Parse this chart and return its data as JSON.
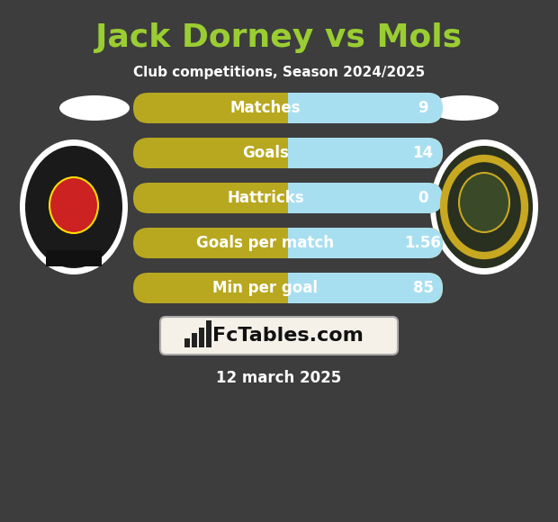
{
  "title": "Jack Dorney vs Mols",
  "subtitle": "Club competitions, Season 2024/2025",
  "date_text": "12 march 2025",
  "background_color": "#3d3d3d",
  "title_color": "#9acd32",
  "subtitle_color": "#ffffff",
  "date_color": "#ffffff",
  "stats": [
    {
      "label": "Matches",
      "value": "9"
    },
    {
      "label": "Goals",
      "value": "14"
    },
    {
      "label": "Hattricks",
      "value": "0"
    },
    {
      "label": "Goals per match",
      "value": "1.56"
    },
    {
      "label": "Min per goal",
      "value": "85"
    }
  ],
  "bar_left_color": "#b8a820",
  "bar_right_color": "#a8dff0",
  "bar_text_color": "#ffffff",
  "watermark_bg": "#f5f0e8",
  "watermark_text": "FcTables.com",
  "watermark_color": "#111111",
  "watermark_border": "#aaaaaa"
}
